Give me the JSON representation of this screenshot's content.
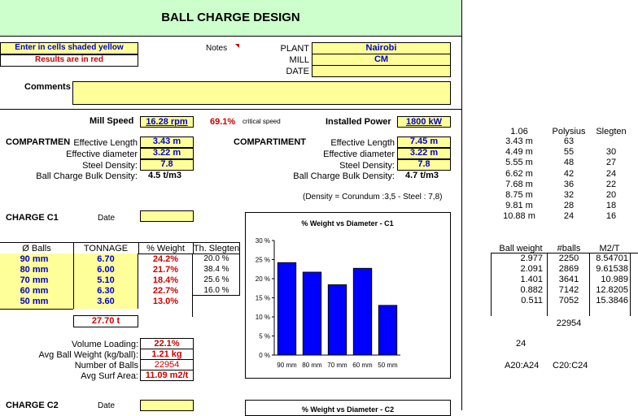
{
  "header": {
    "title": "BALL CHARGE DESIGN"
  },
  "instructions": {
    "line1": "Enter in cells shaded yellow",
    "line2": "Results are in red"
  },
  "notes_label": "Notes",
  "plant": {
    "label": "PLANT",
    "value": "Nairobi"
  },
  "mill": {
    "label": "MILL",
    "value": "CM"
  },
  "date": {
    "label": "DATE",
    "value": ""
  },
  "comments": {
    "label": "Comments",
    "value": ""
  },
  "mill_speed": {
    "label": "Mill Speed",
    "value": "16.28 rpm",
    "critical_pct": "69.1%",
    "critical_label": "critical speed"
  },
  "installed_power": {
    "label": "Installed Power",
    "value": "1800 kW"
  },
  "comp1": {
    "label": "COMPARTMEN",
    "eff_length_label": "Effective Length",
    "eff_length": "3.43 m",
    "eff_diam_label": "Effective diameter",
    "eff_diam": "3.22 m",
    "steel_density_label": "Steel Density:",
    "steel_density": "7.8",
    "bulk_label": "Ball Charge Bulk Density:",
    "bulk": "4.5 t/m3"
  },
  "comp2": {
    "label": "COMPARTIMENT",
    "eff_length_label": "Effective Length",
    "eff_length": "7.45 m",
    "eff_diam_label": "Effective diameter",
    "eff_diam": "3.22 m",
    "steel_density_label": "Steel Density:",
    "steel_density": "7.8",
    "bulk_label": "Ball Charge Bulk Density:",
    "bulk": "4.7 t/m3",
    "density_note": "(Density = Corundum :3,5 - Steel : 7,8)"
  },
  "charge1": {
    "label": "CHARGE C1",
    "date_label": "Date",
    "headers": [
      "Ø Balls",
      "TONNAGE",
      "% Weight",
      "Th. Slegten"
    ],
    "rows": [
      {
        "ball": "90 mm",
        "tonnage": "6.70",
        "weight": "24.2%",
        "slegten": "20.0 %"
      },
      {
        "ball": "80 mm",
        "tonnage": "6.00",
        "weight": "21.7%",
        "slegten": "38.4 %"
      },
      {
        "ball": "70 mm",
        "tonnage": "5.10",
        "weight": "18.4%",
        "slegten": "25.6 %"
      },
      {
        "ball": "60 mm",
        "tonnage": "6.30",
        "weight": "22.7%",
        "slegten": "16.0 %"
      },
      {
        "ball": "50 mm",
        "tonnage": "3.60",
        "weight": "13.0%",
        "slegten": ""
      }
    ],
    "total": "27.70 t",
    "volume_loading_label": "Volume Loading:",
    "volume_loading": "22.1%",
    "avg_ball_weight_label": "Avg Ball Weight (kg/ball):",
    "avg_ball_weight": "1.21 kg",
    "num_balls_label": "Number of Balls",
    "num_balls": "22954",
    "avg_surf_label": "Avg Surf Area:",
    "avg_surf": "11.09 m2/t"
  },
  "charge2": {
    "label": "CHARGE C2",
    "date_label": "Date"
  },
  "chart_data": {
    "type": "bar",
    "title": "% Weight vs Diameter - C1",
    "categories": [
      "90 mm",
      "80 mm",
      "70 mm",
      "60 mm",
      "50 mm"
    ],
    "values": [
      24.2,
      21.7,
      18.4,
      22.7,
      13.0
    ],
    "ylim": [
      0,
      30
    ],
    "yticks": [
      "0 %",
      "5 %",
      "10 %",
      "15 %",
      "20 %",
      "25 %",
      "30 %"
    ],
    "bar_color": "#0000ff",
    "grid": false
  },
  "chart2_title_partial": "% Weight vs Diameter - C2",
  "side_table1": {
    "headers": [
      "1.06",
      "Polysius",
      "Slegten"
    ],
    "rows": [
      [
        "3.43 m",
        "63",
        ""
      ],
      [
        "4.49 m",
        "55",
        "30"
      ],
      [
        "5.55 m",
        "48",
        "27"
      ],
      [
        "6.62 m",
        "42",
        "24"
      ],
      [
        "7.68 m",
        "36",
        "22"
      ],
      [
        "8.75 m",
        "32",
        "20"
      ],
      [
        "9.81 m",
        "28",
        "18"
      ],
      [
        "10.88 m",
        "24",
        "16"
      ]
    ]
  },
  "side_table2": {
    "headers": [
      "Ball weight",
      "#balls",
      "M2/T"
    ],
    "rows": [
      [
        "2.977",
        "2250",
        "8.54701"
      ],
      [
        "2.091",
        "2869",
        "9.61538"
      ],
      [
        "1.401",
        "3641",
        "10.989"
      ],
      [
        "0.882",
        "7142",
        "12.8205"
      ],
      [
        "0.511",
        "7052",
        "15.3846"
      ]
    ],
    "total": "22954",
    "count": "24",
    "range1": "A20:A24",
    "range2": "C20:C24"
  }
}
